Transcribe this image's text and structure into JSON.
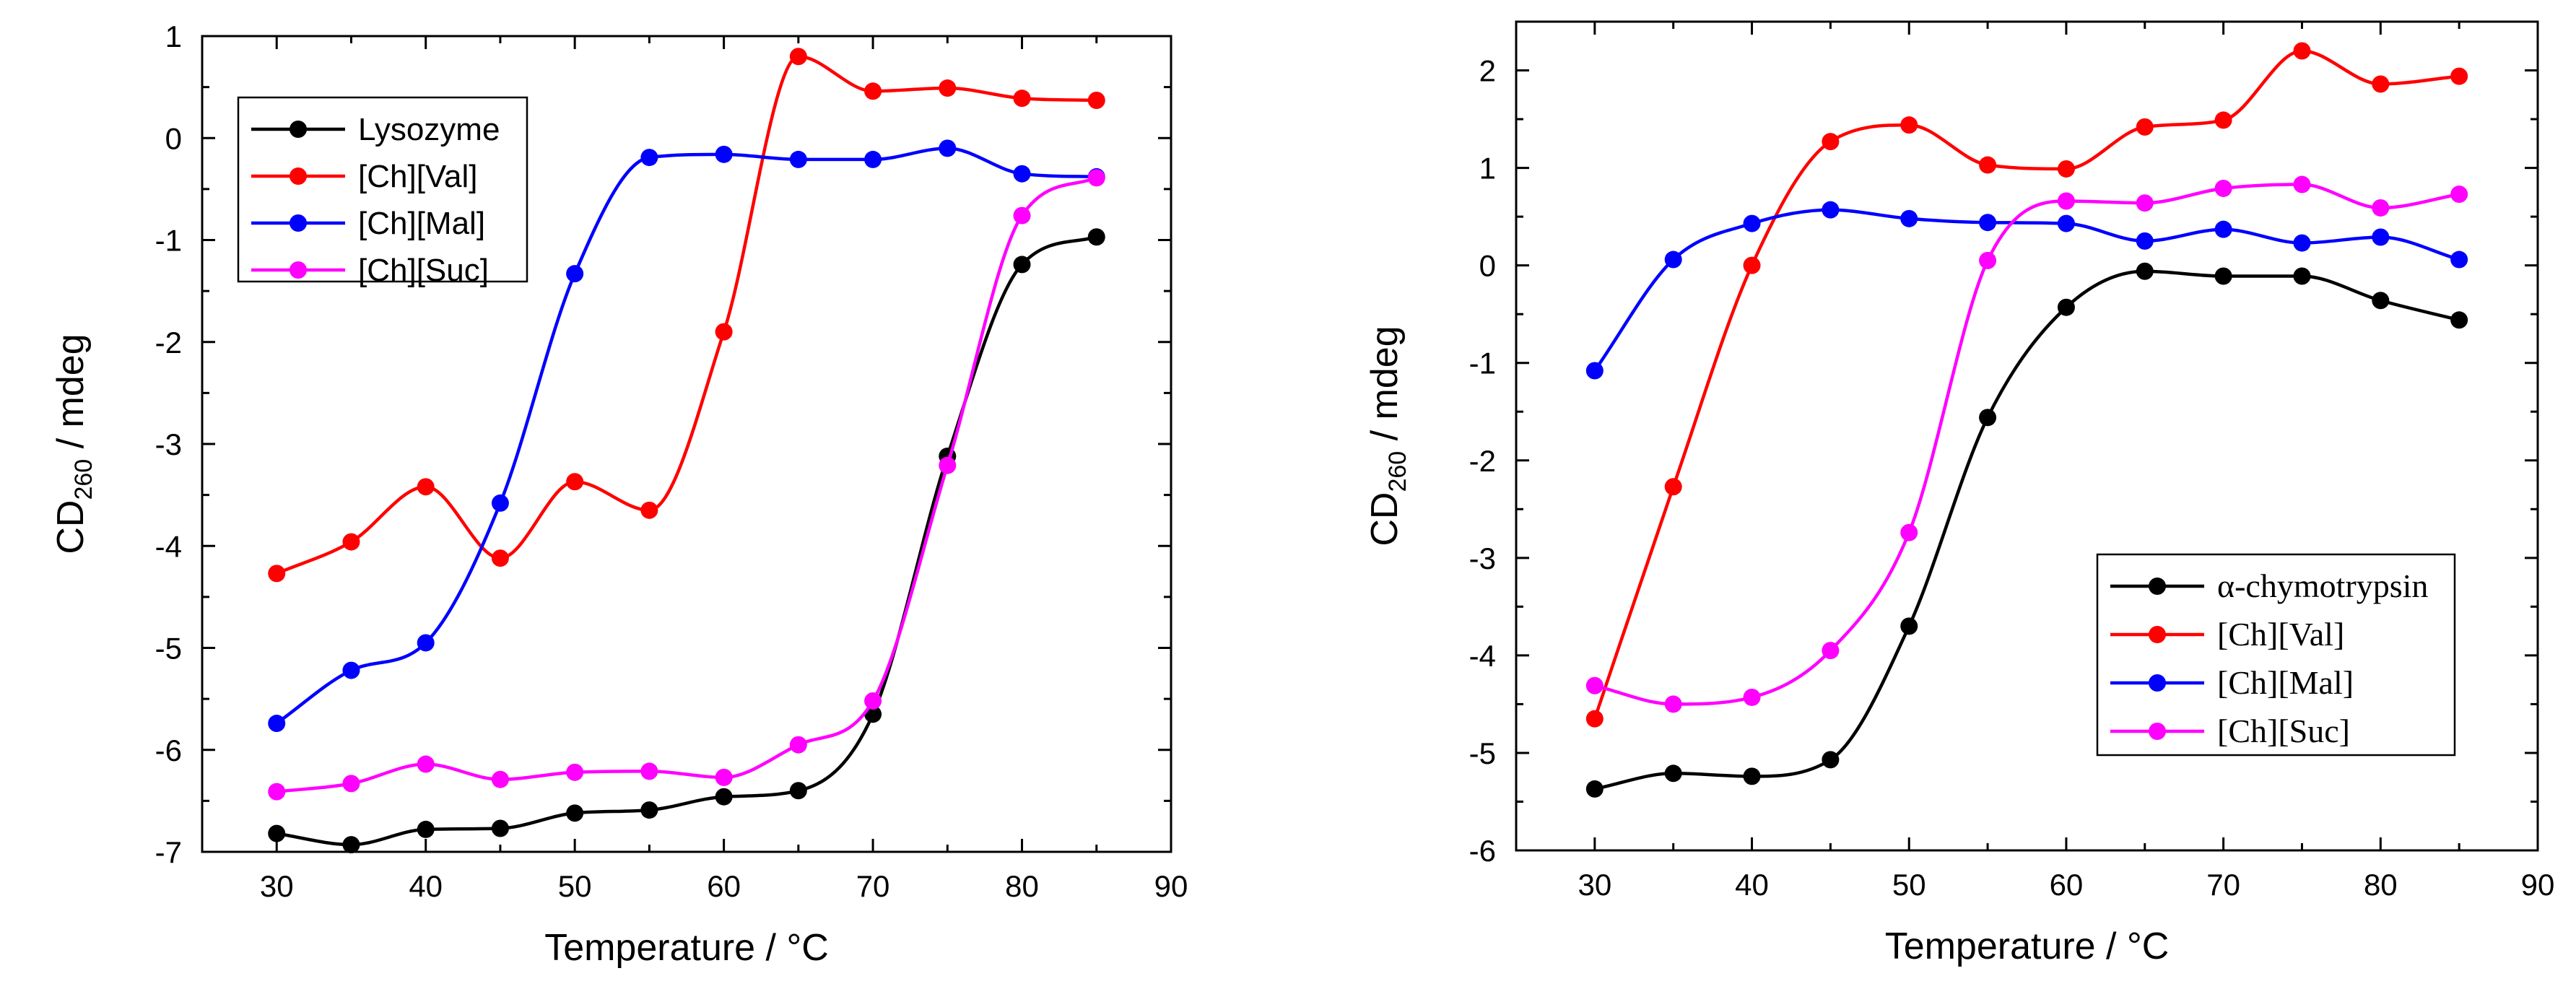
{
  "chart_data": [
    {
      "type": "line",
      "panel": "left",
      "title": "",
      "xlabel": "Temperature / °C",
      "ylabel_main": "CD",
      "ylabel_sub": "260",
      "ylabel_rest": " / mdeg",
      "xlim": [
        25,
        90
      ],
      "ylim": [
        -7,
        1
      ],
      "xticks": [
        30,
        40,
        50,
        60,
        70,
        80,
        90
      ],
      "yticks": [
        -7,
        -6,
        -5,
        -4,
        -3,
        -2,
        -1,
        0,
        1
      ],
      "legend_position": "top-left",
      "legend_font": "sans",
      "x": [
        30,
        35,
        40,
        45,
        50,
        55,
        60,
        65,
        70,
        75,
        80,
        85
      ],
      "series": [
        {
          "name": "Lysozyme",
          "color": "#000000",
          "values": [
            -6.82,
            -6.93,
            -6.78,
            -6.77,
            -6.62,
            -6.59,
            -6.46,
            -6.4,
            -5.65,
            -3.12,
            -1.24,
            -0.97
          ]
        },
        {
          "name": "[Ch][Val]",
          "color": "#ff0000",
          "values": [
            -4.27,
            -3.96,
            -3.42,
            -4.12,
            -3.37,
            -3.65,
            -1.9,
            0.8,
            0.46,
            0.49,
            0.39,
            0.37
          ]
        },
        {
          "name": "[Ch][Mal]",
          "color": "#0000ff",
          "values": [
            -5.74,
            -5.22,
            -4.95,
            -3.58,
            -1.33,
            -0.19,
            -0.16,
            -0.21,
            -0.21,
            -0.1,
            -0.35,
            -0.38
          ]
        },
        {
          "name": "[Ch][Suc]",
          "color": "#ff00ff",
          "values": [
            -6.41,
            -6.33,
            -6.14,
            -6.29,
            -6.22,
            -6.21,
            -6.27,
            -5.95,
            -5.52,
            -3.21,
            -0.76,
            -0.39
          ]
        }
      ]
    },
    {
      "type": "line",
      "panel": "right",
      "title": "",
      "xlabel": "Temperature / °C",
      "ylabel_main": "CD",
      "ylabel_sub": "260",
      "ylabel_rest": " / mdeg",
      "xlim": [
        25,
        90
      ],
      "ylim": [
        -6,
        2.5
      ],
      "xticks": [
        30,
        40,
        50,
        60,
        70,
        80,
        90
      ],
      "yticks": [
        -6,
        -5,
        -4,
        -3,
        -2,
        -1,
        0,
        1,
        2
      ],
      "legend_position": "bottom-right",
      "legend_font": "serif",
      "x": [
        30,
        35,
        40,
        45,
        50,
        55,
        60,
        65,
        70,
        75,
        80,
        85
      ],
      "series": [
        {
          "name": "α-chymotrypsin",
          "color": "#000000",
          "values": [
            -5.37,
            -5.21,
            -5.24,
            -5.07,
            -3.7,
            -1.56,
            -0.43,
            -0.06,
            -0.11,
            -0.11,
            -0.36,
            -0.56
          ]
        },
        {
          "name": "[Ch][Val]",
          "color": "#ff0000",
          "values": [
            -4.65,
            -2.27,
            0.0,
            1.27,
            1.44,
            1.03,
            0.99,
            1.42,
            1.49,
            2.2,
            1.86,
            1.94
          ]
        },
        {
          "name": "[Ch][Mal]",
          "color": "#0000ff",
          "values": [
            -1.08,
            0.06,
            0.43,
            0.57,
            0.48,
            0.44,
            0.43,
            0.25,
            0.37,
            0.23,
            0.29,
            0.06
          ]
        },
        {
          "name": "[Ch][Suc]",
          "color": "#ff00ff",
          "values": [
            -4.31,
            -4.5,
            -4.43,
            -3.95,
            -2.74,
            0.05,
            0.66,
            0.64,
            0.79,
            0.83,
            0.59,
            0.73
          ]
        }
      ]
    }
  ]
}
